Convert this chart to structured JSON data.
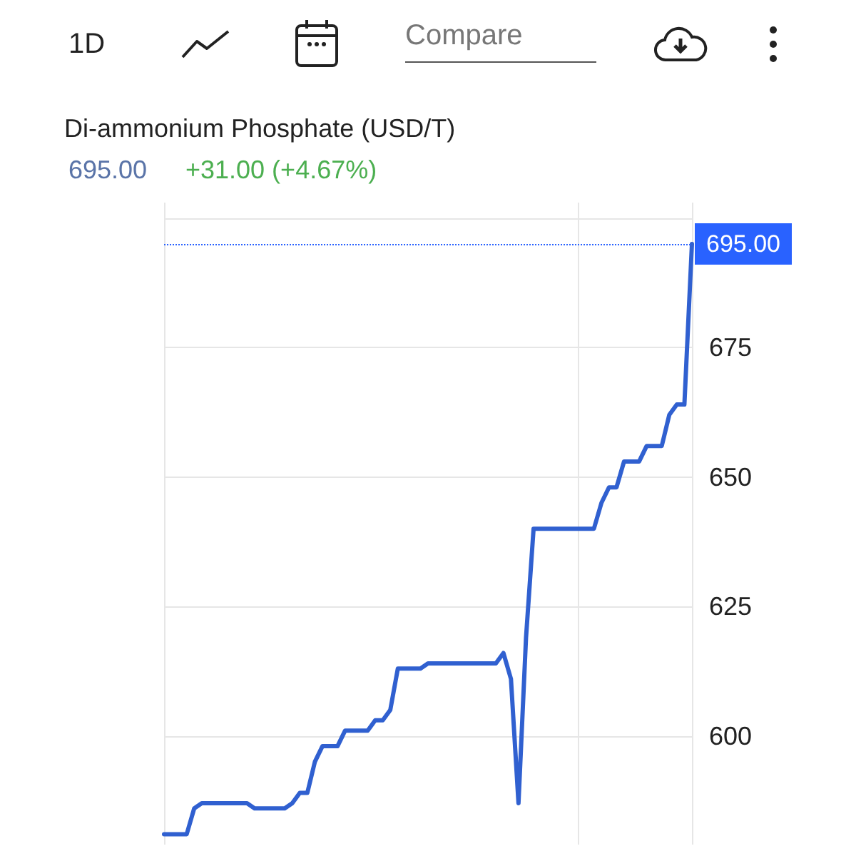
{
  "chart_data": {
    "type": "line",
    "title": "Di-ammonium Phosphate (USD/T)",
    "annotations": [
      "695.00",
      "+31.00 (+4.67%)",
      "1D",
      "Compare"
    ],
    "categories": [
      null,
      null,
      null,
      null,
      null,
      null,
      null,
      null,
      null,
      null,
      null,
      null,
      null,
      null,
      null,
      null,
      null,
      null,
      null,
      null,
      null,
      null,
      null,
      null,
      null,
      null,
      null,
      null,
      null,
      null,
      null,
      null,
      null,
      null,
      null,
      null,
      null,
      null,
      null,
      null,
      null,
      null,
      null,
      null,
      null,
      null,
      null,
      null,
      null,
      null,
      null,
      null,
      null,
      null,
      null,
      null,
      null,
      null,
      null,
      null,
      null,
      null,
      null,
      null,
      null,
      null,
      null,
      null,
      null,
      null,
      null
    ],
    "series": [
      {
        "color": "#3060d0",
        "values": [
          581,
          581,
          581,
          581,
          586,
          587,
          587,
          587,
          587,
          587,
          587,
          587,
          586,
          586,
          586,
          586,
          586,
          587,
          589,
          589,
          595,
          598,
          598,
          598,
          601,
          601,
          601,
          601,
          603,
          603,
          605,
          613,
          613,
          613,
          613,
          614,
          614,
          614,
          614,
          614,
          614,
          614,
          614,
          614,
          614,
          616,
          611,
          587,
          619,
          640,
          640,
          640,
          640,
          640,
          640,
          640,
          640,
          640,
          645,
          648,
          648,
          653,
          653,
          653,
          656,
          656,
          656,
          662,
          664,
          664,
          695
        ]
      }
    ],
    "ylim": [
      579,
      703
    ],
    "yticks": [
      600,
      625,
      650,
      675,
      {
        "value": 700,
        "label": null
      }
    ],
    "ref_lines": [
      {
        "axis": "y",
        "value": 695,
        "label": "695.00",
        "color": "#2962ff",
        "line_style": "dotted"
      }
    ],
    "grid": true,
    "tick_labels": "y",
    "line_style": "solid"
  }
}
